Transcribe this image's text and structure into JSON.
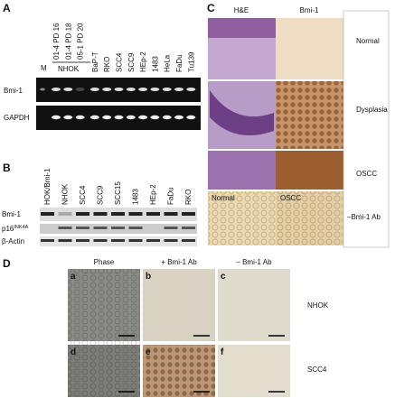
{
  "panel_a": {
    "label": "A",
    "marker": "M",
    "group": "NHOK",
    "lanes": [
      "01-4 PD 16",
      "01-4 PD 18",
      "05-1 PD 20",
      "BaP-T",
      "RKO",
      "SCC4",
      "SCC9",
      "HEp-2",
      "1483",
      "HeLa",
      "FaDu",
      "Tu139"
    ],
    "rows": [
      "Bmi-1",
      "GAPDH"
    ]
  },
  "panel_b": {
    "label": "B",
    "lanes": [
      "HOK/Bmi-1",
      "NHOK",
      "SCC4",
      "SCC9",
      "SCC15",
      "1483",
      "HEp-2",
      "FaDu",
      "RKO"
    ],
    "rows": [
      {
        "text": "Bmi-1"
      },
      {
        "text": "p16",
        "sup": "INK4A"
      },
      {
        "text": "β-Actin"
      }
    ]
  },
  "panel_c": {
    "label": "C",
    "columns": [
      "H&E",
      "Bmi-1"
    ],
    "rows": [
      "Normal",
      "Dysplasia",
      "OSCC"
    ],
    "control": {
      "left": "Normal",
      "right": "OSCC",
      "label": "–Bmi-1 Ab"
    }
  },
  "panel_d": {
    "label": "D",
    "columns": [
      "Phase",
      "+ Bmi-1 Ab",
      "– Bmi-1 Ab"
    ],
    "cells": [
      "a",
      "b",
      "c",
      "d",
      "e",
      "f"
    ],
    "rows": [
      "NHOK",
      "SCC4"
    ]
  }
}
